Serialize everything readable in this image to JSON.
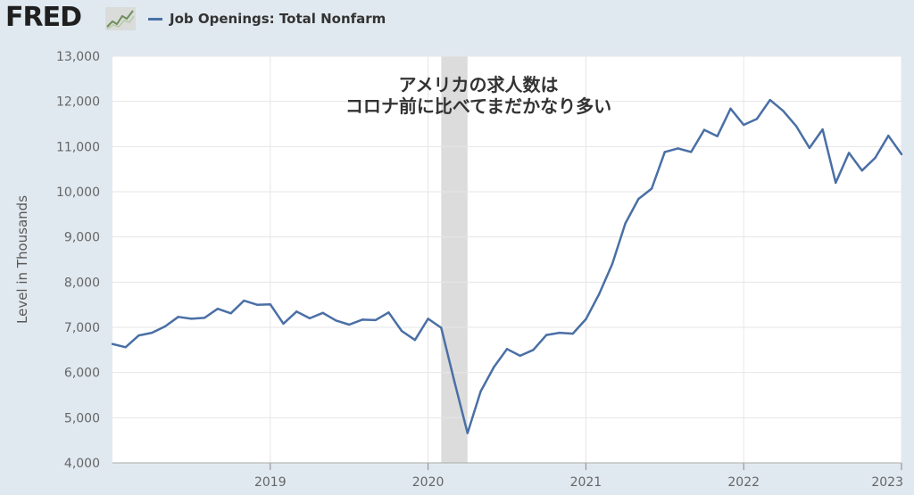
{
  "brand": {
    "name": "FRED"
  },
  "colors": {
    "series": "#4a6fa5",
    "recession": "#dcdcdc",
    "plot_bg": "#ffffff",
    "page_bg": "#e1e9f0",
    "grid": "#e6e6e6"
  },
  "chart_data": {
    "type": "line",
    "title": "",
    "xlabel": "",
    "ylabel": "Level in Thousands",
    "ylim": [
      4000,
      13000
    ],
    "yticks": [
      4000,
      5000,
      6000,
      7000,
      8000,
      9000,
      10000,
      11000,
      12000,
      13000
    ],
    "ytick_labels": [
      "4,000",
      "5,000",
      "6,000",
      "7,000",
      "8,000",
      "9,000",
      "10,000",
      "11,000",
      "12,000",
      "13,000"
    ],
    "xticks": [
      "2019-01",
      "2020-01",
      "2021-01",
      "2022-01",
      "2023-01"
    ],
    "xtick_labels": [
      "2019",
      "2020",
      "2021",
      "2022",
      "2023"
    ],
    "xlim": [
      "2018-01",
      "2023-01"
    ],
    "grid": true,
    "legend_position": "top-left",
    "series": [
      {
        "name": "Job Openings: Total Nonfarm",
        "x": [
          "2018-01",
          "2018-02",
          "2018-03",
          "2018-04",
          "2018-05",
          "2018-06",
          "2018-07",
          "2018-08",
          "2018-09",
          "2018-10",
          "2018-11",
          "2018-12",
          "2019-01",
          "2019-02",
          "2019-03",
          "2019-04",
          "2019-05",
          "2019-06",
          "2019-07",
          "2019-08",
          "2019-09",
          "2019-10",
          "2019-11",
          "2019-12",
          "2020-01",
          "2020-02",
          "2020-03",
          "2020-04",
          "2020-05",
          "2020-06",
          "2020-07",
          "2020-08",
          "2020-09",
          "2020-10",
          "2020-11",
          "2020-12",
          "2021-01",
          "2021-02",
          "2021-03",
          "2021-04",
          "2021-05",
          "2021-06",
          "2021-07",
          "2021-08",
          "2021-09",
          "2021-10",
          "2021-11",
          "2021-12",
          "2022-01",
          "2022-02",
          "2022-03",
          "2022-04",
          "2022-05",
          "2022-06",
          "2022-07",
          "2022-08",
          "2022-09",
          "2022-10",
          "2022-11",
          "2022-12",
          "2023-01"
        ],
        "values": [
          6630,
          6560,
          6820,
          6880,
          7020,
          7230,
          7190,
          7210,
          7410,
          7310,
          7590,
          7500,
          7510,
          7080,
          7350,
          7200,
          7320,
          7150,
          7060,
          7170,
          7160,
          7330,
          6920,
          6720,
          7190,
          6990,
          5800,
          4660,
          5580,
          6120,
          6520,
          6370,
          6500,
          6830,
          6880,
          6860,
          7180,
          7730,
          8400,
          9300,
          9840,
          10070,
          10880,
          10960,
          10880,
          11370,
          11230,
          11840,
          11480,
          11610,
          12030,
          11790,
          11450,
          10970,
          11380,
          10200,
          10860,
          10470,
          10750,
          11240,
          10830
        ]
      }
    ],
    "recession": {
      "start": "2020-02",
      "end": "2020-04"
    },
    "annotations": [
      "アメリカの求人数は",
      "コロナ前に比べてまだかなり多い"
    ]
  }
}
